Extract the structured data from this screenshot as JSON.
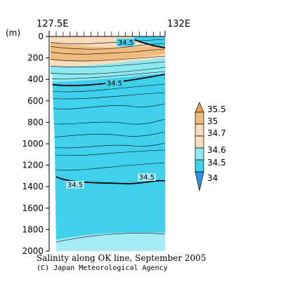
{
  "chart_data": {
    "type": "heatmap",
    "xlabel": "",
    "ylabel": "(m)",
    "x_ticks": [
      "127.5E",
      "132E"
    ],
    "xlim": [
      127.5,
      132
    ],
    "ylim": [
      2000,
      0
    ],
    "y_ticks": [
      0,
      200,
      400,
      600,
      800,
      1000,
      1200,
      1400,
      1600,
      1800,
      2000
    ],
    "colorbar": {
      "levels": [
        35.5,
        35.0,
        34.7,
        34.6,
        34.5,
        34.0
      ],
      "colors": [
        "#e8a050",
        "#f0bb7e",
        "#f8dcbc",
        "#8ee8f0",
        "#40d0ec",
        "#2a90e8",
        "#e8a050"
      ]
    },
    "contour_labels": [
      {
        "value": "34.5",
        "depth": 50
      },
      {
        "value": "34.5",
        "depth": 420
      },
      {
        "value": "34.5",
        "depth": 1400
      },
      {
        "value": "34.5",
        "depth": 1330
      }
    ],
    "station_ticks": 16
  },
  "caption": "Salinity along OK line, September 2005",
  "credit": "(C) Japan Meteorological Agency",
  "colors": {
    "s_35_0": "#f0bb7e",
    "s_34_7": "#f8dcbc",
    "s_34_6": "#8ee8f0",
    "s_34_5": "#40d0ec",
    "s_deep": "#a6ecf6"
  }
}
